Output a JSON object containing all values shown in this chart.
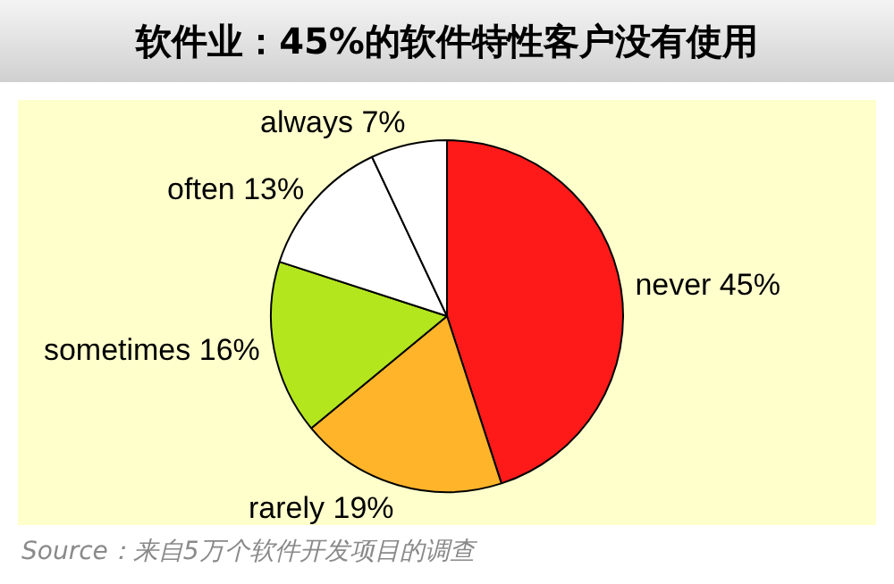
{
  "chart_data": {
    "type": "pie",
    "title": "软件业：45%的软件特性客户没有使用",
    "categories": [
      "never",
      "rarely",
      "sometimes",
      "often",
      "always"
    ],
    "values": [
      45,
      19,
      16,
      13,
      7
    ],
    "value_labels": [
      "45%",
      "19%",
      "16%",
      "13%",
      "7%"
    ],
    "colors": [
      "#ff1a1a",
      "#ffb42a",
      "#b4e61e",
      "#ffffff",
      "#ffffff"
    ],
    "legend": false,
    "annotations": [
      "Source：来自5万个软件开发项目的调查"
    ]
  }
}
